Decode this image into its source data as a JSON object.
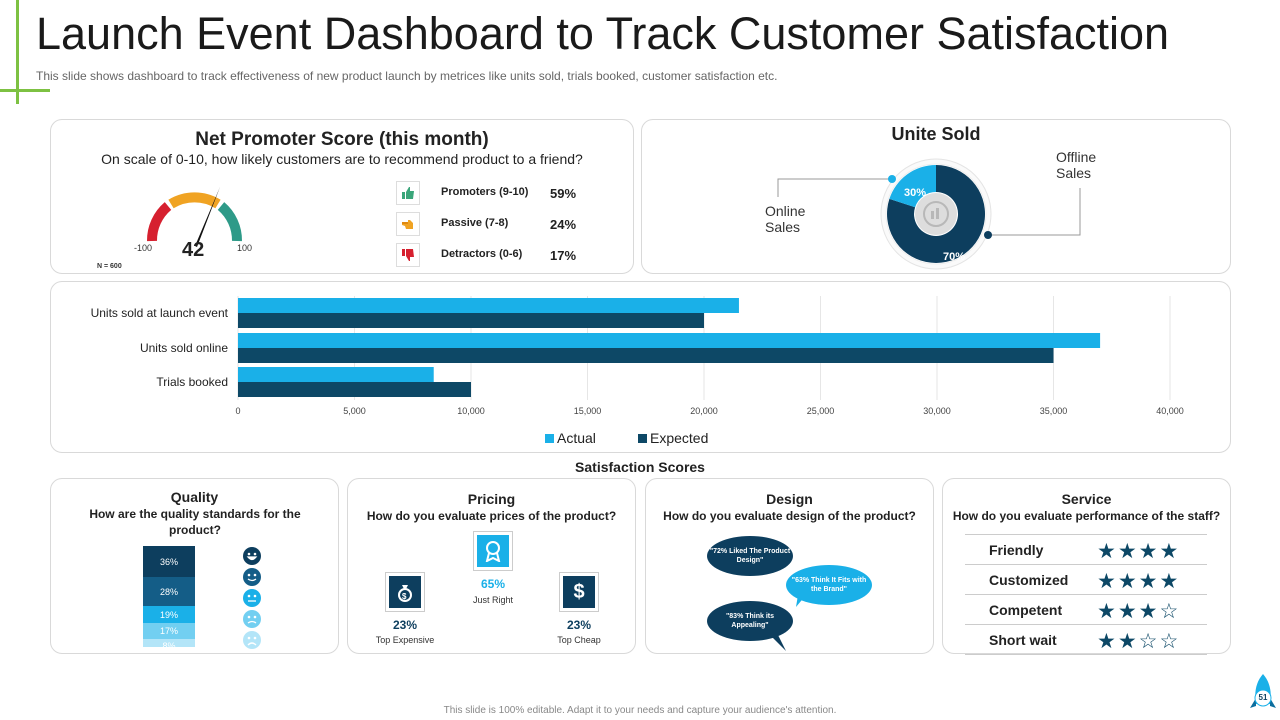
{
  "slide": {
    "title": "Launch Event Dashboard to Track Customer Satisfaction",
    "subtitle": "This slide shows dashboard to track effectiveness of new product launch by metrices like units sold, trials booked, customer satisfaction etc.",
    "footer": "This slide is 100% editable. Adapt it to your needs and capture your audience's attention.",
    "page_number": "51"
  },
  "nps": {
    "title": "Net Promoter Score (this month)",
    "question": "On scale of 0-10, how likely customers are to recommend product to a friend?",
    "score": "42",
    "min_label": "-100",
    "max_label": "100",
    "n_label": "N = 600",
    "rows": [
      {
        "label": "Promoters (9-10)",
        "value": "59%",
        "icon": "thumbs-up-icon",
        "color": "#3aa67a"
      },
      {
        "label": "Passive (7-8)",
        "value": "24%",
        "icon": "pointing-hand-icon",
        "color": "#f0a323"
      },
      {
        "label": "Detractors (0-6)",
        "value": "17%",
        "icon": "thumbs-down-icon",
        "color": "#d6202f"
      }
    ],
    "gauge_colors": [
      "#d6202f",
      "#f0a323",
      "#2e9a88"
    ]
  },
  "units_sold": {
    "title": "Unite Sold",
    "online_label": "Online Sales",
    "offline_label": "Offline Sales",
    "online_pct": "30%",
    "offline_pct": "70%",
    "online_color": "#1ab0e8",
    "offline_color": "#0d3e5e"
  },
  "chart_data": {
    "type": "bar",
    "orientation": "horizontal",
    "categories": [
      "Units sold at launch event",
      "Units sold online",
      "Trials booked"
    ],
    "series": [
      {
        "name": "Actual",
        "values": [
          21500,
          37000,
          8400
        ],
        "color": "#1ab0e8"
      },
      {
        "name": "Expected",
        "values": [
          20000,
          35000,
          10000
        ],
        "color": "#0d4866"
      }
    ],
    "xlim": [
      0,
      40000
    ],
    "xticks": [
      "0",
      "5,000",
      "10,000",
      "15,000",
      "20,000",
      "25,000",
      "30,000",
      "35,000",
      "40,000"
    ],
    "grid": true,
    "legend": "bottom"
  },
  "satisfaction": {
    "title": "Satisfaction Scores",
    "quality": {
      "title": "Quality",
      "question": "How are the quality standards for the product?",
      "segments": [
        {
          "label": "36%",
          "value": 36,
          "color": "#0d3e5e"
        },
        {
          "label": "28%",
          "value": 28,
          "color": "#145d87"
        },
        {
          "label": "19%",
          "value": 19,
          "color": "#1ab0e8"
        },
        {
          "label": "17%",
          "value": 17,
          "color": "#72cff1"
        },
        {
          "label": "8%",
          "value": 8,
          "color": "#b3e5f8"
        }
      ],
      "face_colors": [
        "#0d3e5e",
        "#145d87",
        "#1ab0e8",
        "#72cff1",
        "#b3e5f8"
      ]
    },
    "pricing": {
      "title": "Pricing",
      "question": "How do you evaluate prices of the product?",
      "items": [
        {
          "pct": "65%",
          "caption": "Just Right",
          "icon": "award-badge-icon"
        },
        {
          "pct": "23%",
          "caption": "Top Expensive",
          "icon": "money-bag-icon"
        },
        {
          "pct": "23%",
          "caption": "Top Cheap",
          "icon": "dollar-icon"
        }
      ]
    },
    "design": {
      "title": "Design",
      "question": "How do you evaluate design of the product?",
      "bubbles": [
        "\"72% Liked The Product Design\"",
        "\"63% Think It Fits with the Brand\"",
        "\"83% Think its Appealing\""
      ]
    },
    "service": {
      "title": "Service",
      "question": "How do you evaluate performance of the staff?",
      "rows": [
        {
          "label": "Friendly",
          "stars": 4,
          "out_of": 4
        },
        {
          "label": "Customized",
          "stars": 4,
          "out_of": 4
        },
        {
          "label": "Competent",
          "stars": 3,
          "out_of": 4
        },
        {
          "label": "Short wait",
          "stars": 2,
          "out_of": 4
        }
      ]
    }
  }
}
